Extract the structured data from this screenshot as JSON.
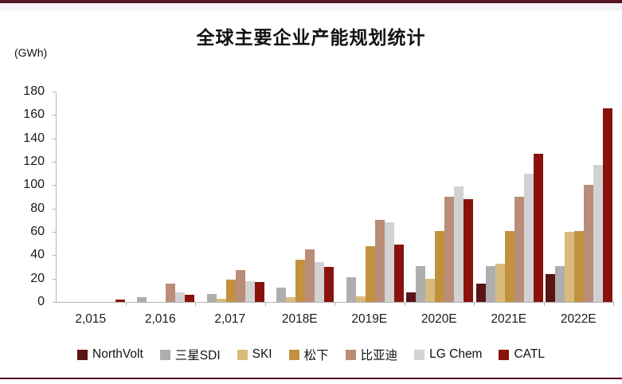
{
  "page": {
    "title": "全球主要企业产能规划统计",
    "unit_label": "(GWh)",
    "accent_line_color": "#531326",
    "band_color": "#f3f1f8",
    "background_color": "#ffffff",
    "axis_color": "#b3b3b3"
  },
  "chart_data": {
    "type": "bar",
    "title": "全球主要企业产能规划统计",
    "ylabel": "(GWh)",
    "xlabel": "",
    "categories": [
      "2,015",
      "2,016",
      "2,017",
      "2018E",
      "2019E",
      "2020E",
      "2021E",
      "2022E"
    ],
    "series": [
      {
        "name": "NorthVolt",
        "color": "#5a1416",
        "values": [
          0,
          0,
          0,
          0,
          0,
          8,
          16,
          24
        ]
      },
      {
        "name": "三星SDI",
        "color": "#aeaeae",
        "values": [
          0,
          4,
          7,
          12,
          21,
          31,
          31,
          31
        ]
      },
      {
        "name": "SKI",
        "color": "#d9ba7d",
        "values": [
          0,
          0,
          3,
          4,
          5,
          20,
          33,
          60
        ]
      },
      {
        "name": "松下",
        "color": "#c2913e",
        "values": [
          0,
          0,
          19,
          36,
          48,
          61,
          61,
          61
        ]
      },
      {
        "name": "比亚迪",
        "color": "#b98d79",
        "values": [
          0,
          16,
          27,
          45,
          70,
          90,
          90,
          100
        ]
      },
      {
        "name": "LG Chem",
        "color": "#d2d2d2",
        "values": [
          0,
          8,
          18,
          34,
          68,
          99,
          110,
          117
        ]
      },
      {
        "name": "CATL",
        "color": "#8a120d",
        "values": [
          2,
          6,
          17,
          30,
          49,
          88,
          127,
          166
        ]
      }
    ],
    "ylim": [
      0,
      180
    ],
    "yticks": [
      0,
      20,
      40,
      60,
      80,
      100,
      120,
      140,
      160,
      180
    ],
    "grid": false,
    "legend_position": "bottom"
  }
}
